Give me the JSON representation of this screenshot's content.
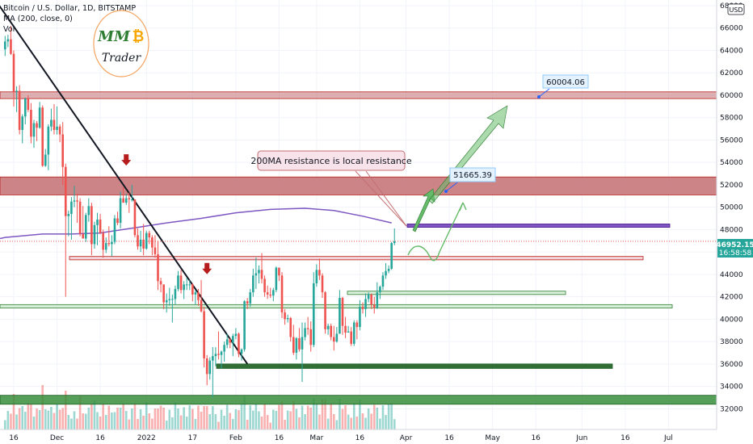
{
  "legend": {
    "symbol": "Bitcoin / U.S. Dollar, 1D, BITSTAMP",
    "ma": "MA (200, close, 0)",
    "vol": "Vol"
  },
  "logo": {
    "top": "MM",
    "coin": "₿",
    "bottom": "Trader"
  },
  "currency_badge": "USD",
  "price_label": {
    "price": "46952.15",
    "countdown": "16:58:58"
  },
  "annotations": {
    "callout": "200MA resistance is local resistance",
    "target1": "51665.39",
    "target2": "60004.06"
  },
  "colors": {
    "up": "#26a69a",
    "down": "#ef5350",
    "ma": "#7e57c2",
    "resistance_zone": "#c36f72",
    "support_zone": "#388e3c",
    "trendline": "#131722",
    "projection": "#66bb6a",
    "arrow_down": "#b71c1c"
  },
  "chart_data": {
    "type": "candlestick",
    "symbol": "BTC/USD",
    "timeframe": "1D",
    "exchange": "BITSTAMP",
    "ylim": [
      31000,
      68000
    ],
    "y_ticks": [
      32000,
      34000,
      36000,
      38000,
      40000,
      42000,
      44000,
      46000,
      48000,
      50000,
      52000,
      54000,
      56000,
      58000,
      60000,
      62000,
      64000,
      66000,
      68000
    ],
    "x_ticks": [
      "16",
      "Dec",
      "16",
      "2022",
      "17",
      "Feb",
      "16",
      "Mar",
      "16",
      "Apr",
      "16",
      "May",
      "16",
      "Jun",
      "16",
      "Jul"
    ],
    "x_tick_dates": [
      "2021-11-16",
      "2021-12-01",
      "2021-12-16",
      "2022-01-01",
      "2022-01-17",
      "2022-02-01",
      "2022-02-16",
      "2022-03-01",
      "2022-03-16",
      "2022-04-01",
      "2022-04-16",
      "2022-05-01",
      "2022-05-16",
      "2022-06-01",
      "2022-06-16",
      "2022-07-01"
    ],
    "last_price": 46952.15,
    "ma_200": [
      [
        "2021-11-13",
        47300
      ],
      [
        "2021-11-26",
        47600
      ],
      [
        "2021-12-06",
        47600
      ],
      [
        "2021-12-16",
        47700
      ],
      [
        "2021-12-29",
        48200
      ],
      [
        "2022-01-08",
        48600
      ],
      [
        "2022-01-20",
        49000
      ],
      [
        "2022-02-01",
        49500
      ],
      [
        "2022-02-13",
        49800
      ],
      [
        "2022-02-25",
        49900
      ],
      [
        "2022-03-07",
        49700
      ],
      [
        "2022-03-17",
        49200
      ],
      [
        "2022-03-27",
        48600
      ]
    ],
    "candles": [
      [
        "2021-11-13",
        64100,
        65300,
        63500,
        64800
      ],
      [
        "2021-11-14",
        64800,
        65400,
        64300,
        65000
      ],
      [
        "2021-11-15",
        65000,
        66200,
        63600,
        63700
      ],
      [
        "2021-11-16",
        63700,
        64000,
        59000,
        60300
      ],
      [
        "2021-11-17",
        60300,
        60800,
        58500,
        60400
      ],
      [
        "2021-11-18",
        60400,
        60900,
        56500,
        56900
      ],
      [
        "2021-11-19",
        56900,
        58300,
        55700,
        58100
      ],
      [
        "2021-11-20",
        58100,
        59800,
        57400,
        59700
      ],
      [
        "2021-11-21",
        59700,
        60000,
        58500,
        58700
      ],
      [
        "2021-11-22",
        58700,
        59300,
        55700,
        56300
      ],
      [
        "2021-11-23",
        56300,
        57800,
        55300,
        57500
      ],
      [
        "2021-11-24",
        57500,
        57700,
        55900,
        57100
      ],
      [
        "2021-11-25",
        57100,
        59400,
        57000,
        58900
      ],
      [
        "2021-11-26",
        58900,
        59100,
        53600,
        53700
      ],
      [
        "2021-11-27",
        53700,
        55200,
        53600,
        54700
      ],
      [
        "2021-11-28",
        54700,
        57400,
        53300,
        57200
      ],
      [
        "2021-11-29",
        57200,
        58800,
        56800,
        57800
      ],
      [
        "2021-11-30",
        57800,
        59200,
        56500,
        56900
      ],
      [
        "2021-12-01",
        56900,
        59000,
        56500,
        57200
      ],
      [
        "2021-12-02",
        57200,
        57400,
        55800,
        56500
      ],
      [
        "2021-12-03",
        56500,
        57600,
        52000,
        53600
      ],
      [
        "2021-12-04",
        53600,
        53900,
        42000,
        49200
      ],
      [
        "2021-12-05",
        49200,
        49700,
        47400,
        49400
      ],
      [
        "2021-12-06",
        49400,
        50900,
        47100,
        50500
      ],
      [
        "2021-12-07",
        50500,
        51900,
        50000,
        50600
      ],
      [
        "2021-12-08",
        50600,
        51200,
        48600,
        50500
      ],
      [
        "2021-12-09",
        50500,
        50800,
        47400,
        47600
      ],
      [
        "2021-12-10",
        47600,
        50100,
        47300,
        47200
      ],
      [
        "2021-12-11",
        47200,
        49500,
        46900,
        49300
      ],
      [
        "2021-12-12",
        49300,
        50800,
        48700,
        50100
      ],
      [
        "2021-12-13",
        50100,
        50400,
        45700,
        46700
      ],
      [
        "2021-12-14",
        46700,
        48700,
        46300,
        48400
      ],
      [
        "2021-12-15",
        48400,
        49500,
        46600,
        48900
      ],
      [
        "2021-12-16",
        48900,
        49400,
        47600,
        47700
      ],
      [
        "2021-12-17",
        47700,
        48000,
        45500,
        46200
      ],
      [
        "2021-12-18",
        46200,
        47300,
        45900,
        46800
      ],
      [
        "2021-12-19",
        46800,
        48300,
        46500,
        46700
      ],
      [
        "2021-12-20",
        46700,
        47500,
        45600,
        46900
      ],
      [
        "2021-12-21",
        46900,
        49300,
        46700,
        49000
      ],
      [
        "2021-12-22",
        49000,
        49600,
        48400,
        48600
      ],
      [
        "2021-12-23",
        48600,
        51400,
        48100,
        50800
      ],
      [
        "2021-12-24",
        50800,
        51800,
        50500,
        50400
      ],
      [
        "2021-12-25",
        50400,
        51200,
        50200,
        50800
      ],
      [
        "2021-12-26",
        50800,
        51300,
        49500,
        50700
      ],
      [
        "2021-12-27",
        50700,
        52000,
        50500,
        50700
      ],
      [
        "2021-12-28",
        50700,
        50700,
        47300,
        47500
      ],
      [
        "2021-12-29",
        47500,
        48100,
        46200,
        46500
      ],
      [
        "2021-12-30",
        46500,
        47900,
        46000,
        47100
      ],
      [
        "2021-12-31",
        47100,
        48500,
        45700,
        46300
      ],
      [
        "2022-01-01",
        46300,
        47900,
        46200,
        47700
      ],
      [
        "2022-01-02",
        47700,
        47900,
        46700,
        47300
      ],
      [
        "2022-01-03",
        47300,
        47500,
        45700,
        46400
      ],
      [
        "2022-01-04",
        46400,
        47500,
        45500,
        45800
      ],
      [
        "2022-01-05",
        45800,
        47000,
        42600,
        43400
      ],
      [
        "2022-01-06",
        43400,
        43700,
        42400,
        43100
      ],
      [
        "2022-01-07",
        43100,
        43100,
        40900,
        41500
      ],
      [
        "2022-01-08",
        41500,
        42300,
        40600,
        41700
      ],
      [
        "2022-01-09",
        41700,
        42800,
        41200,
        41800
      ],
      [
        "2022-01-10",
        41800,
        42200,
        39700,
        41800
      ],
      [
        "2022-01-11",
        41800,
        43000,
        41300,
        42700
      ],
      [
        "2022-01-12",
        42700,
        44300,
        42500,
        43900
      ],
      [
        "2022-01-13",
        43900,
        44400,
        42300,
        42600
      ],
      [
        "2022-01-14",
        42600,
        43400,
        41800,
        43100
      ],
      [
        "2022-01-15",
        43100,
        43700,
        42600,
        43100
      ],
      [
        "2022-01-16",
        43100,
        43500,
        42600,
        43100
      ],
      [
        "2022-01-17",
        43100,
        43200,
        41600,
        42200
      ],
      [
        "2022-01-18",
        42200,
        42600,
        41300,
        42400
      ],
      [
        "2022-01-19",
        42400,
        42700,
        41200,
        41700
      ],
      [
        "2022-01-20",
        41700,
        43500,
        40600,
        40700
      ],
      [
        "2022-01-21",
        40700,
        41100,
        35700,
        36500
      ],
      [
        "2022-01-22",
        36500,
        36800,
        34100,
        35100
      ],
      [
        "2022-01-23",
        35100,
        36600,
        34600,
        36300
      ],
      [
        "2022-01-24",
        36300,
        37500,
        33000,
        36700
      ],
      [
        "2022-01-25",
        36700,
        37500,
        35800,
        36900
      ],
      [
        "2022-01-26",
        36900,
        38900,
        36400,
        36800
      ],
      [
        "2022-01-27",
        36800,
        37200,
        35600,
        37100
      ],
      [
        "2022-01-28",
        37100,
        38000,
        36200,
        37700
      ],
      [
        "2022-01-29",
        37700,
        38700,
        37400,
        38200
      ],
      [
        "2022-01-30",
        38200,
        38300,
        37400,
        37900
      ],
      [
        "2022-01-31",
        37900,
        38700,
        36700,
        38500
      ],
      [
        "2022-02-01",
        38500,
        39200,
        38200,
        38700
      ],
      [
        "2022-02-02",
        38700,
        38800,
        36600,
        36900
      ],
      [
        "2022-02-03",
        36900,
        37400,
        36300,
        37300
      ],
      [
        "2022-02-04",
        37300,
        41700,
        37100,
        41600
      ],
      [
        "2022-02-05",
        41600,
        41900,
        40900,
        41400
      ],
      [
        "2022-02-06",
        41400,
        42700,
        41100,
        42400
      ],
      [
        "2022-02-07",
        42400,
        44500,
        42000,
        43900
      ],
      [
        "2022-02-08",
        43900,
        45500,
        42700,
        44100
      ],
      [
        "2022-02-09",
        44100,
        44800,
        43200,
        44400
      ],
      [
        "2022-02-10",
        44400,
        45900,
        43200,
        43600
      ],
      [
        "2022-02-11",
        43600,
        43900,
        42000,
        42400
      ],
      [
        "2022-02-12",
        42400,
        43000,
        41800,
        42200
      ],
      [
        "2022-02-13",
        42200,
        42800,
        41900,
        42100
      ],
      [
        "2022-02-14",
        42100,
        42800,
        41600,
        42600
      ],
      [
        "2022-02-15",
        42600,
        44700,
        42400,
        44600
      ],
      [
        "2022-02-16",
        44600,
        44600,
        43400,
        43900
      ],
      [
        "2022-02-17",
        43900,
        44200,
        40100,
        40600
      ],
      [
        "2022-02-18",
        40600,
        40900,
        39500,
        40000
      ],
      [
        "2022-02-19",
        40000,
        40400,
        39700,
        40100
      ],
      [
        "2022-02-20",
        40100,
        40200,
        38000,
        38400
      ],
      [
        "2022-02-21",
        38400,
        39500,
        36800,
        37000
      ],
      [
        "2022-02-22",
        37000,
        38400,
        36400,
        38300
      ],
      [
        "2022-02-23",
        38300,
        39200,
        37100,
        37300
      ],
      [
        "2022-02-24",
        37300,
        39700,
        34400,
        38400
      ],
      [
        "2022-02-25",
        38400,
        39700,
        38100,
        39200
      ],
      [
        "2022-02-26",
        39200,
        40200,
        38600,
        39100
      ],
      [
        "2022-02-27",
        39100,
        39800,
        37100,
        37700
      ],
      [
        "2022-02-28",
        37700,
        44200,
        37500,
        43200
      ],
      [
        "2022-03-01",
        43200,
        44900,
        42900,
        44400
      ],
      [
        "2022-03-02",
        44400,
        45400,
        43500,
        43900
      ],
      [
        "2022-03-03",
        43900,
        44100,
        41900,
        42400
      ],
      [
        "2022-03-04",
        42400,
        42500,
        38700,
        39100
      ],
      [
        "2022-03-05",
        39100,
        39600,
        38600,
        39400
      ],
      [
        "2022-03-06",
        39400,
        39600,
        38100,
        38400
      ],
      [
        "2022-03-07",
        38400,
        39400,
        37200,
        38000
      ],
      [
        "2022-03-08",
        38000,
        39300,
        37900,
        38700
      ],
      [
        "2022-03-09",
        38700,
        42600,
        38700,
        41900
      ],
      [
        "2022-03-10",
        41900,
        42000,
        38600,
        39400
      ],
      [
        "2022-03-11",
        39400,
        40200,
        38300,
        38800
      ],
      [
        "2022-03-12",
        38800,
        39400,
        38800,
        38900
      ],
      [
        "2022-03-13",
        38900,
        39300,
        37600,
        37800
      ],
      [
        "2022-03-14",
        37800,
        39900,
        37600,
        39700
      ],
      [
        "2022-03-15",
        39700,
        39900,
        38200,
        39300
      ],
      [
        "2022-03-16",
        39300,
        41700,
        39000,
        41100
      ],
      [
        "2022-03-17",
        41100,
        41500,
        40500,
        40900
      ],
      [
        "2022-03-18",
        40900,
        42300,
        40200,
        41800
      ],
      [
        "2022-03-19",
        41800,
        42400,
        41500,
        42200
      ],
      [
        "2022-03-20",
        42200,
        42300,
        40900,
        41300
      ],
      [
        "2022-03-21",
        41300,
        42000,
        40500,
        41000
      ],
      [
        "2022-03-22",
        41000,
        43300,
        40900,
        42400
      ],
      [
        "2022-03-23",
        42400,
        43000,
        41800,
        42900
      ],
      [
        "2022-03-24",
        42900,
        44200,
        42600,
        43900
      ],
      [
        "2022-03-25",
        43900,
        45000,
        43600,
        44300
      ],
      [
        "2022-03-26",
        44300,
        44800,
        44100,
        44500
      ],
      [
        "2022-03-27",
        44500,
        46900,
        44400,
        46800
      ],
      [
        "2022-03-28",
        46800,
        48100,
        46600,
        46952.15
      ]
    ],
    "horizontal_levels": [
      {
        "type": "resistance_zone",
        "low": 59700,
        "high": 60300
      },
      {
        "type": "resistance_zone",
        "low": 51100,
        "high": 52700
      },
      {
        "type": "ma_resistance_box",
        "low": 48200,
        "high": 48500
      },
      {
        "type": "support_box",
        "low": 45300,
        "high": 45600
      },
      {
        "type": "support_box",
        "low": 42200,
        "high": 42500
      },
      {
        "type": "support_box",
        "low": 41000,
        "high": 41300
      },
      {
        "type": "support_zone",
        "low": 35600,
        "high": 36000
      },
      {
        "type": "support_zone",
        "low": 32400,
        "high": 33200
      }
    ],
    "trendline": [
      [
        "2021-11-11",
        68000
      ],
      [
        "2022-02-05",
        36000
      ]
    ]
  }
}
